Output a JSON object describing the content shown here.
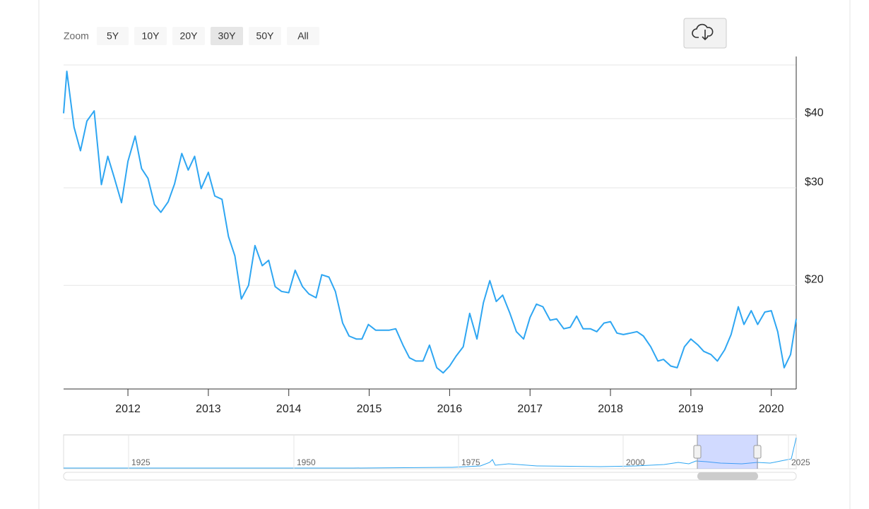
{
  "zoom": {
    "label": "Zoom",
    "buttons": [
      "5Y",
      "10Y",
      "20Y",
      "30Y",
      "50Y",
      "All"
    ],
    "selected": 3
  },
  "navigator": {
    "labels": [
      "1925",
      "1950",
      "1975",
      "2000",
      "2025"
    ]
  },
  "chart_data": {
    "type": "line",
    "log_scale": true,
    "grid": true,
    "x": [
      2011.2,
      2011.24,
      2011.33,
      2011.41,
      2011.49,
      2011.58,
      2011.67,
      2011.75,
      2011.83,
      2011.92,
      2012.0,
      2012.09,
      2012.17,
      2012.25,
      2012.33,
      2012.41,
      2012.5,
      2012.58,
      2012.67,
      2012.75,
      2012.83,
      2012.91,
      2013.0,
      2013.08,
      2013.17,
      2013.25,
      2013.33,
      2013.41,
      2013.5,
      2013.58,
      2013.67,
      2013.75,
      2013.83,
      2013.91,
      2014.0,
      2014.08,
      2014.17,
      2014.25,
      2014.34,
      2014.41,
      2014.5,
      2014.58,
      2014.67,
      2014.75,
      2014.84,
      2014.91,
      2014.99,
      2015.08,
      2015.16,
      2015.25,
      2015.33,
      2015.42,
      2015.5,
      2015.58,
      2015.67,
      2015.75,
      2015.84,
      2015.92,
      2016.0,
      2016.08,
      2016.17,
      2016.25,
      2016.34,
      2016.42,
      2016.5,
      2016.58,
      2016.66,
      2016.75,
      2016.83,
      2016.92,
      2017.0,
      2017.08,
      2017.16,
      2017.25,
      2017.33,
      2017.42,
      2017.5,
      2017.58,
      2017.66,
      2017.75,
      2017.83,
      2017.92,
      2018.0,
      2018.08,
      2018.16,
      2018.25,
      2018.33,
      2018.41,
      2018.5,
      2018.59,
      2018.66,
      2018.75,
      2018.83,
      2018.92,
      2019.0,
      2019.09,
      2019.16,
      2019.25,
      2019.33,
      2019.42,
      2019.5,
      2019.59,
      2019.66,
      2019.75,
      2019.83,
      2019.92,
      2020.0,
      2020.08,
      2020.16,
      2020.24,
      2020.31
    ],
    "series": [
      {
        "color": "#2ea6f2",
        "values": [
          40.9,
          48.7,
          38.6,
          35.0,
          39.6,
          41.3,
          30.4,
          34.2,
          31.3,
          28.2,
          33.5,
          37.2,
          32.5,
          31.2,
          28.0,
          27.1,
          28.3,
          30.5,
          34.6,
          32.3,
          34.2,
          29.9,
          32.0,
          29.0,
          28.6,
          24.5,
          22.6,
          18.9,
          20.0,
          23.6,
          21.7,
          22.2,
          19.9,
          19.5,
          19.4,
          21.3,
          19.9,
          19.3,
          19.0,
          20.9,
          20.7,
          19.5,
          17.1,
          16.2,
          16.0,
          16.0,
          17.0,
          16.6,
          16.6,
          16.6,
          16.7,
          15.6,
          14.8,
          14.6,
          14.6,
          15.6,
          14.2,
          13.9,
          14.3,
          14.9,
          15.5,
          17.8,
          16.0,
          18.6,
          20.4,
          18.7,
          19.2,
          17.8,
          16.5,
          16.0,
          17.5,
          18.5,
          18.3,
          17.3,
          17.4,
          16.7,
          16.8,
          17.6,
          16.7,
          16.7,
          16.5,
          17.1,
          17.2,
          16.4,
          16.3,
          16.4,
          16.5,
          16.2,
          15.5,
          14.6,
          14.7,
          14.3,
          14.2,
          15.5,
          16.0,
          15.6,
          15.2,
          15.0,
          14.6,
          15.3,
          16.3,
          18.3,
          17.0,
          18.0,
          17.0,
          17.9,
          18.0,
          16.5,
          14.2,
          15.0,
          17.4
        ]
      }
    ],
    "xlim": [
      2011.2,
      2020.31
    ],
    "xticks": [
      2012,
      2013,
      2014,
      2015,
      2016,
      2017,
      2018,
      2019,
      2020
    ],
    "ylim": [
      13,
      50
    ],
    "yticks": [
      {
        "value": 20,
        "label": "$20"
      },
      {
        "value": 30,
        "label": "$30"
      },
      {
        "value": 40,
        "label": "$40"
      }
    ]
  }
}
